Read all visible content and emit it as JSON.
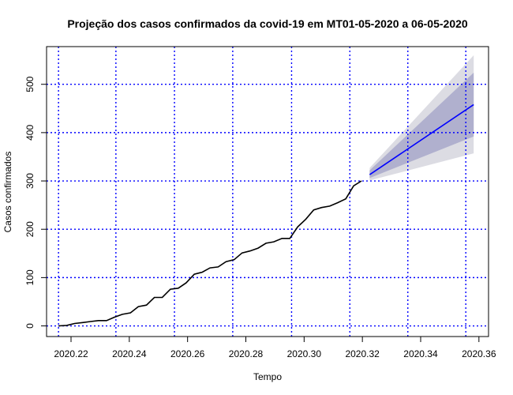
{
  "chart_data": {
    "type": "line",
    "title": "Projeção dos casos confirmados da covid-19 em MT01-05-2020 a 06-05-2020",
    "xlabel": "Tempo",
    "ylabel": "Casos confirmados",
    "xlim": [
      2020.2116,
      2020.3633
    ],
    "ylim": [
      -22,
      578
    ],
    "xticks": [
      2020.22,
      2020.24,
      2020.26,
      2020.28,
      2020.3,
      2020.32,
      2020.34,
      2020.36
    ],
    "xtick_labels": [
      "2020.22",
      "2020.24",
      "2020.26",
      "2020.28",
      "2020.30",
      "2020.32",
      "2020.34",
      "2020.36"
    ],
    "yticks": [
      0,
      100,
      200,
      300,
      400,
      500
    ],
    "ytick_labels": [
      "0",
      "100",
      "200",
      "300",
      "400",
      "500"
    ],
    "grid": true,
    "grid_x": [
      2020.2157,
      2020.2354,
      2020.2555,
      2020.2755,
      2020.2957,
      2020.3157,
      2020.3356,
      2020.3555
    ],
    "grid_color": "#0000ff",
    "series": [
      {
        "role": "observed",
        "color": "#000000",
        "points": [
          [
            2020.2157,
            0
          ],
          [
            2020.2185,
            1
          ],
          [
            2020.2212,
            5
          ],
          [
            2020.224,
            7
          ],
          [
            2020.2267,
            9
          ],
          [
            2020.2294,
            11
          ],
          [
            2020.2322,
            11
          ],
          [
            2020.2349,
            18
          ],
          [
            2020.2376,
            24
          ],
          [
            2020.2404,
            27
          ],
          [
            2020.2431,
            40
          ],
          [
            2020.2459,
            43
          ],
          [
            2020.2486,
            59
          ],
          [
            2020.2513,
            59
          ],
          [
            2020.2541,
            76
          ],
          [
            2020.2568,
            78
          ],
          [
            2020.2595,
            89
          ],
          [
            2020.2623,
            107
          ],
          [
            2020.265,
            111
          ],
          [
            2020.2677,
            120
          ],
          [
            2020.2705,
            122
          ],
          [
            2020.2732,
            133
          ],
          [
            2020.276,
            137
          ],
          [
            2020.2787,
            151
          ],
          [
            2020.2814,
            155
          ],
          [
            2020.2842,
            161
          ],
          [
            2020.2869,
            171
          ],
          [
            2020.2896,
            174
          ],
          [
            2020.2924,
            181
          ],
          [
            2020.2951,
            181
          ],
          [
            2020.2978,
            205
          ],
          [
            2020.3006,
            221
          ],
          [
            2020.3033,
            240
          ],
          [
            2020.306,
            245
          ],
          [
            2020.3088,
            248
          ],
          [
            2020.3115,
            255
          ],
          [
            2020.3143,
            263
          ],
          [
            2020.317,
            290
          ],
          [
            2020.3197,
            300
          ]
        ]
      },
      {
        "role": "forecast",
        "color": "#0000ff",
        "x": [
          2020.3225,
          2020.3582
        ],
        "mean": [
          313,
          458
        ],
        "lower80": [
          306,
          392
        ],
        "upper80": [
          322,
          524
        ],
        "lower95": [
          301,
          357
        ],
        "upper95": [
          327,
          560
        ]
      }
    ],
    "band_colors": {
      "ci95": "#dcdce3",
      "ci80": "#b0b0ce"
    }
  }
}
